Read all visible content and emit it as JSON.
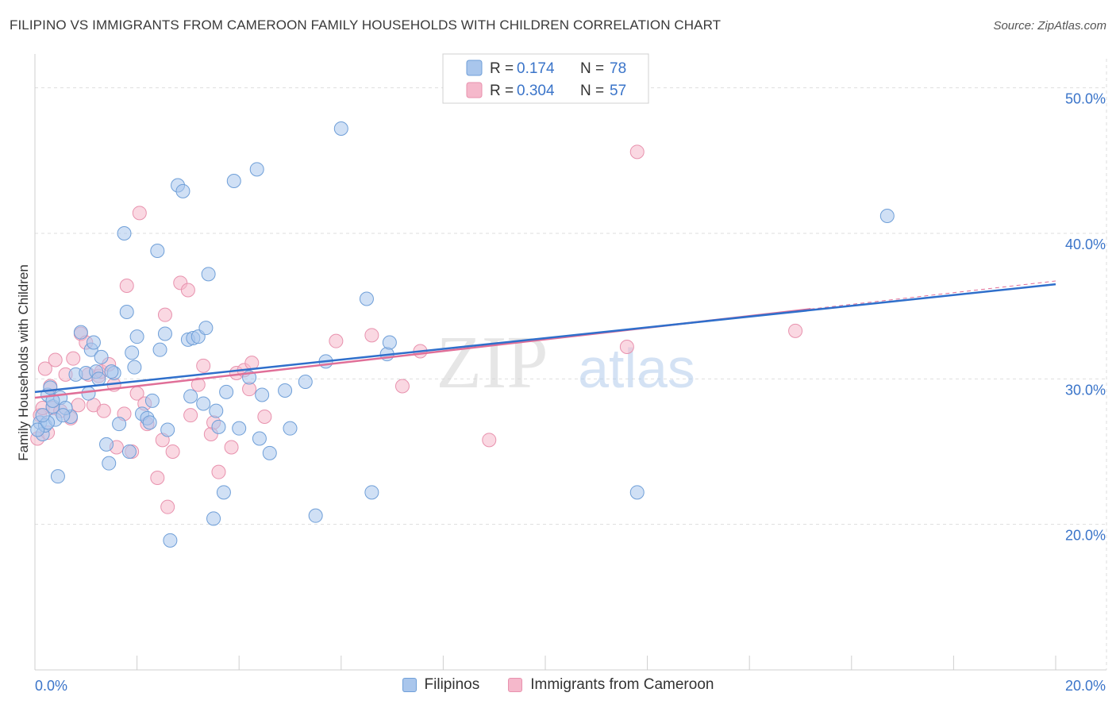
{
  "title": "FILIPINO VS IMMIGRANTS FROM CAMEROON FAMILY HOUSEHOLDS WITH CHILDREN CORRELATION CHART",
  "source": "Source: ZipAtlas.com",
  "watermark": {
    "zip": "ZIP",
    "atlas": "atlas"
  },
  "colors": {
    "blue_fill": "#a9c6ec",
    "blue_stroke": "#6f9fd8",
    "blue_line": "#2f6fcb",
    "pink_fill": "#f5b8cb",
    "pink_stroke": "#e892ae",
    "pink_line": "#e06f98",
    "value_text": "#3a74c9",
    "grid": "#dedede"
  },
  "legend": {
    "r_label": "R =",
    "n_label": "N =",
    "rows": [
      {
        "r": "0.174",
        "n": "78",
        "series": "Filipinos"
      },
      {
        "r": "0.304",
        "n": "57",
        "series": "Immigrants from Cameroon"
      }
    ]
  },
  "chart_data": {
    "type": "scatter",
    "title": "FILIPINO VS IMMIGRANTS FROM CAMEROON FAMILY HOUSEHOLDS WITH CHILDREN CORRELATION CHART",
    "xlabel": "",
    "ylabel": "Family Households with Children",
    "xlim": [
      0,
      20
    ],
    "ylim": [
      10,
      52
    ],
    "x_tick_labels": [
      "0.0%",
      "20.0%"
    ],
    "y_ticks": [
      20,
      30,
      40,
      50
    ],
    "y_tick_labels": [
      "20.0%",
      "30.0%",
      "40.0%",
      "50.0%"
    ],
    "grid": true,
    "legend_position": "top-center",
    "series": [
      {
        "name": "Filipinos",
        "color": "#a9c6ec",
        "trend": {
          "x": [
            0,
            20
          ],
          "y": [
            29.1,
            36.5
          ]
        },
        "points": [
          [
            0.1,
            27.0
          ],
          [
            0.15,
            26.2
          ],
          [
            0.2,
            26.8
          ],
          [
            0.25,
            28.9
          ],
          [
            0.3,
            29.4
          ],
          [
            0.35,
            28.1
          ],
          [
            0.4,
            27.2
          ],
          [
            0.45,
            23.3
          ],
          [
            0.5,
            28.7
          ],
          [
            0.7,
            27.4
          ],
          [
            0.8,
            30.3
          ],
          [
            0.9,
            33.2
          ],
          [
            1.0,
            30.4
          ],
          [
            1.05,
            29.0
          ],
          [
            1.1,
            32.0
          ],
          [
            1.15,
            32.5
          ],
          [
            1.2,
            30.5
          ],
          [
            1.3,
            31.5
          ],
          [
            1.4,
            25.5
          ],
          [
            1.45,
            24.2
          ],
          [
            1.55,
            30.4
          ],
          [
            1.65,
            26.9
          ],
          [
            1.75,
            40.0
          ],
          [
            1.8,
            34.6
          ],
          [
            1.85,
            25.0
          ],
          [
            1.9,
            31.8
          ],
          [
            1.95,
            30.8
          ],
          [
            2.0,
            32.9
          ],
          [
            2.1,
            27.6
          ],
          [
            2.2,
            27.3
          ],
          [
            2.3,
            28.5
          ],
          [
            2.4,
            38.8
          ],
          [
            2.45,
            32.0
          ],
          [
            2.55,
            33.1
          ],
          [
            2.6,
            26.5
          ],
          [
            2.65,
            18.9
          ],
          [
            2.8,
            43.3
          ],
          [
            2.9,
            42.9
          ],
          [
            3.0,
            32.7
          ],
          [
            3.05,
            28.8
          ],
          [
            3.1,
            32.8
          ],
          [
            3.2,
            32.9
          ],
          [
            3.3,
            28.3
          ],
          [
            3.35,
            33.5
          ],
          [
            3.4,
            37.2
          ],
          [
            3.5,
            20.4
          ],
          [
            3.55,
            27.8
          ],
          [
            3.6,
            26.7
          ],
          [
            3.7,
            22.2
          ],
          [
            3.75,
            29.1
          ],
          [
            3.9,
            43.6
          ],
          [
            4.0,
            26.6
          ],
          [
            4.2,
            30.1
          ],
          [
            4.35,
            44.4
          ],
          [
            4.4,
            25.9
          ],
          [
            4.45,
            28.9
          ],
          [
            4.6,
            24.9
          ],
          [
            4.9,
            29.2
          ],
          [
            5.0,
            26.6
          ],
          [
            5.3,
            29.8
          ],
          [
            5.5,
            20.6
          ],
          [
            5.7,
            31.2
          ],
          [
            6.0,
            47.2
          ],
          [
            6.5,
            35.5
          ],
          [
            6.6,
            22.2
          ],
          [
            6.9,
            31.7
          ],
          [
            6.95,
            32.5
          ],
          [
            11.8,
            22.2
          ],
          [
            16.7,
            41.2
          ],
          [
            0.6,
            28.0
          ],
          [
            0.55,
            27.5
          ],
          [
            0.05,
            26.5
          ],
          [
            0.25,
            27.0
          ],
          [
            1.25,
            30.0
          ],
          [
            1.5,
            30.5
          ],
          [
            2.25,
            27.0
          ],
          [
            0.15,
            27.5
          ],
          [
            0.35,
            28.5
          ]
        ]
      },
      {
        "name": "Immigrants from Cameroon",
        "color": "#f5b8cb",
        "trend": {
          "x": [
            0,
            15.2
          ],
          "y": [
            28.7,
            34.8
          ]
        },
        "points": [
          [
            0.05,
            25.9
          ],
          [
            0.1,
            27.5
          ],
          [
            0.15,
            28.0
          ],
          [
            0.2,
            30.7
          ],
          [
            0.25,
            26.3
          ],
          [
            0.3,
            29.5
          ],
          [
            0.35,
            28.0
          ],
          [
            0.4,
            31.3
          ],
          [
            0.5,
            27.8
          ],
          [
            0.6,
            30.3
          ],
          [
            0.7,
            27.3
          ],
          [
            0.75,
            31.4
          ],
          [
            0.85,
            28.2
          ],
          [
            0.9,
            33.1
          ],
          [
            1.0,
            32.5
          ],
          [
            1.05,
            30.3
          ],
          [
            1.15,
            28.2
          ],
          [
            1.25,
            30.2
          ],
          [
            1.3,
            30.5
          ],
          [
            1.35,
            27.8
          ],
          [
            1.45,
            31.0
          ],
          [
            1.55,
            29.6
          ],
          [
            1.6,
            25.3
          ],
          [
            1.75,
            27.6
          ],
          [
            1.8,
            36.4
          ],
          [
            1.9,
            25.0
          ],
          [
            2.0,
            29.0
          ],
          [
            2.05,
            41.4
          ],
          [
            2.15,
            28.3
          ],
          [
            2.2,
            26.9
          ],
          [
            2.4,
            23.2
          ],
          [
            2.5,
            25.8
          ],
          [
            2.55,
            34.4
          ],
          [
            2.6,
            21.2
          ],
          [
            2.7,
            25.0
          ],
          [
            2.85,
            36.6
          ],
          [
            3.0,
            36.1
          ],
          [
            3.05,
            27.5
          ],
          [
            3.2,
            29.6
          ],
          [
            3.3,
            30.9
          ],
          [
            3.45,
            26.2
          ],
          [
            3.5,
            27.0
          ],
          [
            3.6,
            23.6
          ],
          [
            3.85,
            25.3
          ],
          [
            3.95,
            30.4
          ],
          [
            4.1,
            30.6
          ],
          [
            4.2,
            29.3
          ],
          [
            4.25,
            31.1
          ],
          [
            4.5,
            27.4
          ],
          [
            5.9,
            32.6
          ],
          [
            6.6,
            33.0
          ],
          [
            7.2,
            29.5
          ],
          [
            7.55,
            31.9
          ],
          [
            8.9,
            25.8
          ],
          [
            11.6,
            32.2
          ],
          [
            11.8,
            45.6
          ],
          [
            14.9,
            33.3
          ]
        ]
      }
    ]
  }
}
